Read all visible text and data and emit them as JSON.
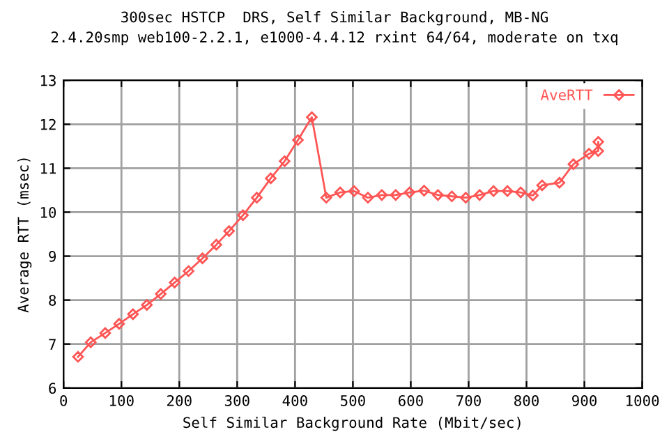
{
  "chart_data": {
    "type": "line",
    "title": "300sec HSTCP  DRS, Self Similar Background, MB-NG",
    "subtitle": "2.4.20smp web100-2.2.1, e1000-4.4.12 rxint 64/64, moderate on txq",
    "xlabel": "Self Similar Background Rate (Mbit/sec)",
    "ylabel": "Average RTT (msec)",
    "series": [
      {
        "name": "AveRTT",
        "color": "#ff5555",
        "x": [
          25,
          47,
          72,
          96,
          120,
          144,
          168,
          192,
          216,
          240,
          264,
          286,
          310,
          334,
          358,
          382,
          405,
          429,
          454,
          478,
          502,
          526,
          550,
          574,
          598,
          623,
          647,
          671,
          695,
          719,
          743,
          767,
          790,
          811,
          827,
          857,
          881,
          908,
          924,
          924
        ],
        "values": [
          6.71,
          7.04,
          7.25,
          7.46,
          7.68,
          7.89,
          8.14,
          8.4,
          8.66,
          8.95,
          9.26,
          9.57,
          9.93,
          10.33,
          10.77,
          11.16,
          11.64,
          12.16,
          10.33,
          10.45,
          10.48,
          10.33,
          10.39,
          10.39,
          10.45,
          10.49,
          10.39,
          10.36,
          10.33,
          10.39,
          10.48,
          10.48,
          10.45,
          10.38,
          10.61,
          10.67,
          11.09,
          11.33,
          11.39,
          11.6
        ]
      }
    ],
    "xlim": [
      0,
      1000
    ],
    "xticks": [
      0,
      100,
      200,
      300,
      400,
      500,
      600,
      700,
      800,
      900,
      1000
    ],
    "ylim": [
      6,
      13
    ],
    "yticks": [
      6,
      7,
      8,
      9,
      10,
      11,
      12,
      13
    ],
    "grid": true,
    "legend": "top right",
    "marker": "diamond",
    "line_style": "solid"
  }
}
